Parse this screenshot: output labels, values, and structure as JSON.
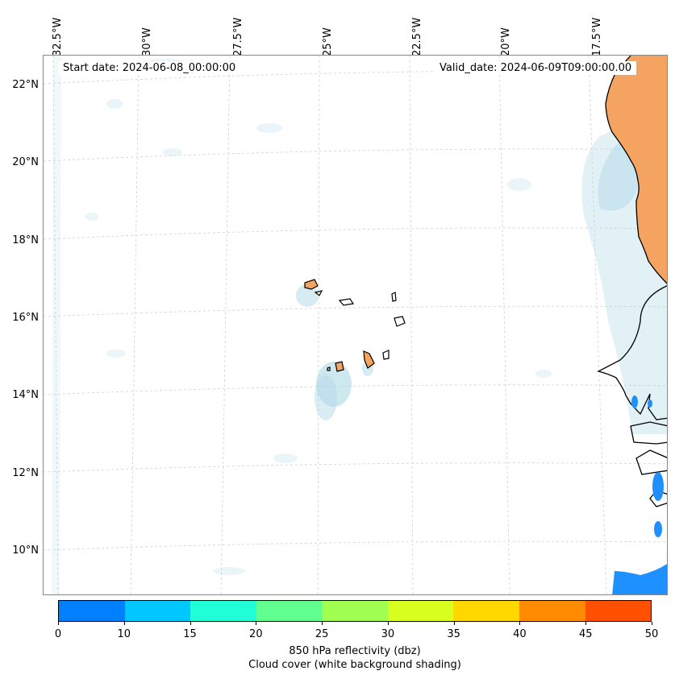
{
  "map": {
    "start_date_label": "Start date: 2024-06-08_00:00:00",
    "valid_date_label": "Valid_date: 2024-06-09T09:00:00.00",
    "longitude_labels": [
      "32.5°W",
      "30°W",
      "27.5°W",
      "25°W",
      "22.5°W",
      "20°W",
      "17.5°W"
    ],
    "latitude_labels": [
      "22°N",
      "20°N",
      "18°N",
      "16°N",
      "14°N",
      "12°N",
      "10°N"
    ]
  },
  "colorbar": {
    "ticks": [
      "0",
      "10",
      "15",
      "20",
      "25",
      "30",
      "35",
      "40",
      "45",
      "50"
    ],
    "colors": [
      "#0080ff",
      "#00c8ff",
      "#20ffd8",
      "#60ff90",
      "#a0ff50",
      "#d8ff20",
      "#ffd800",
      "#ff8c00",
      "#ff5000"
    ],
    "label_line1": "850 hPa reflectivity (dbz)",
    "label_line2": "Cloud cover (white background shading)"
  },
  "colors": {
    "land": "#f4a460",
    "cloud": "#add8e6",
    "reflectivity": "#1e90ff"
  }
}
